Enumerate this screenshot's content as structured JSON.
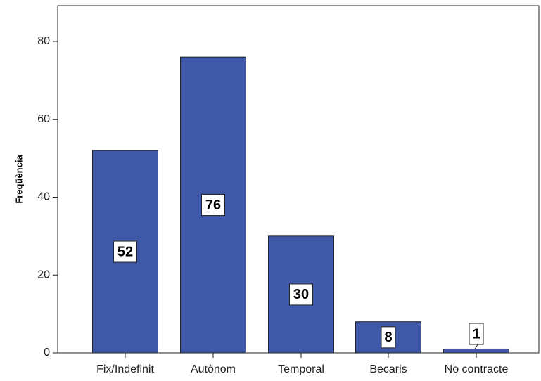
{
  "chart_data": {
    "type": "bar",
    "categories": [
      "Fix/Indefinit",
      "Autònom",
      "Temporal",
      "Becaris",
      "No contracte"
    ],
    "values": [
      52,
      76,
      30,
      8,
      1
    ],
    "data_labels": [
      "52",
      "76",
      "30",
      "8",
      "1"
    ],
    "ylabel": "Freqüència",
    "xlabel": "",
    "ylim": [
      0,
      80
    ],
    "yticks": [
      0,
      20,
      40,
      60,
      80
    ],
    "ytick_labels": [
      "0",
      "20",
      "40",
      "60",
      "80"
    ],
    "grid": false,
    "bar_color": "#3f59a8",
    "bar_edge_color": "#222222"
  }
}
